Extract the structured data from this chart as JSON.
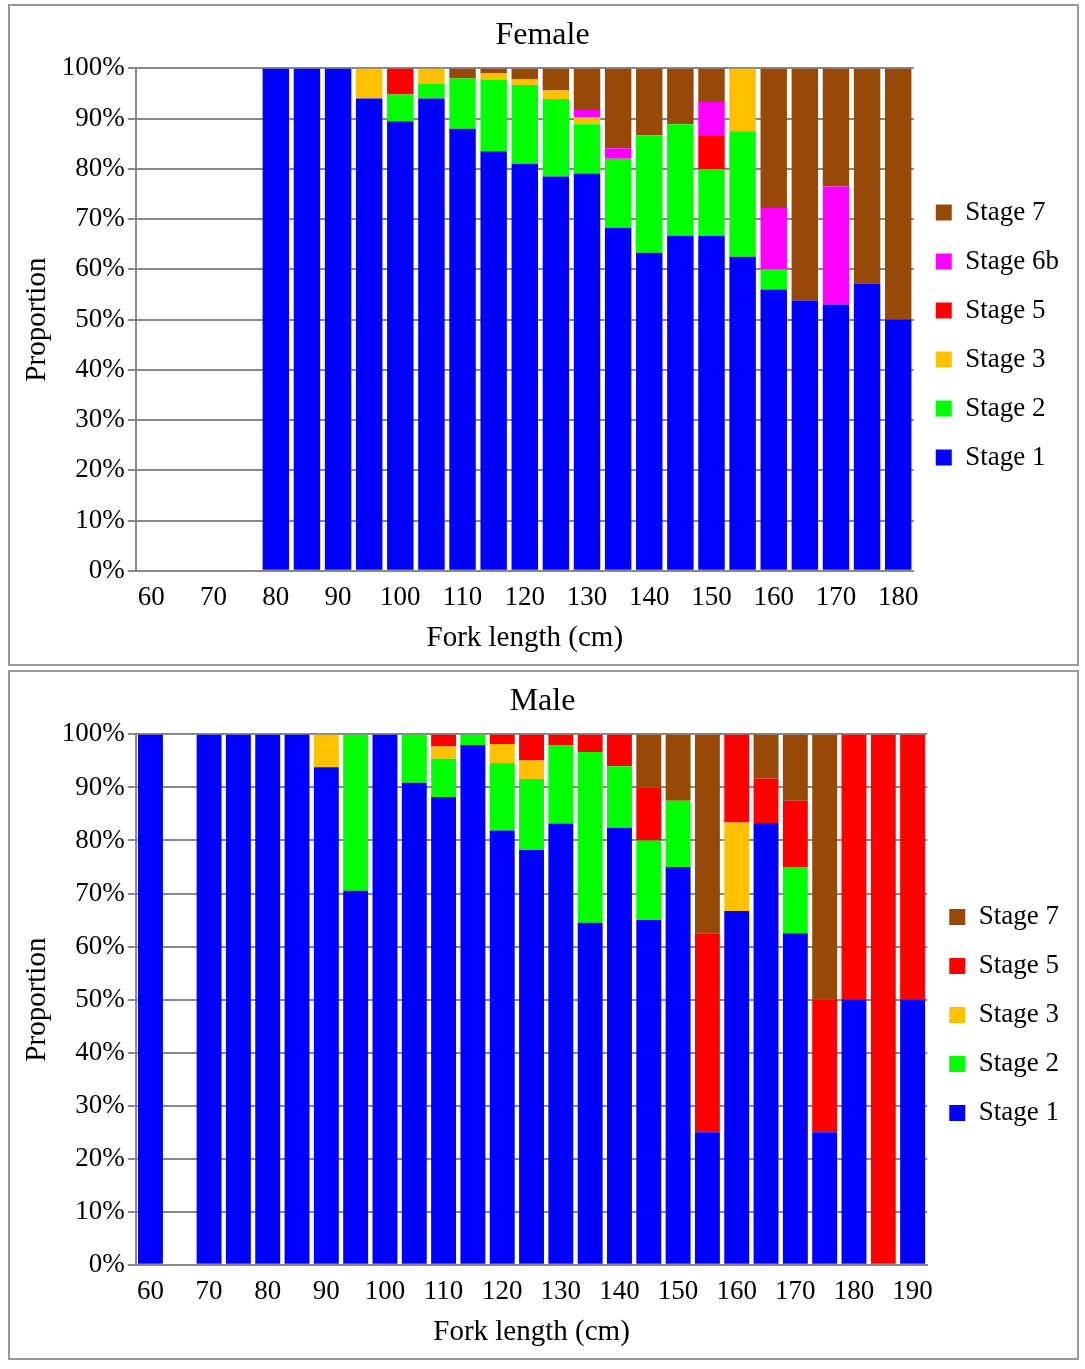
{
  "chart_data": [
    {
      "type": "bar",
      "title": "Female",
      "xlabel": "Fork length (cm)",
      "ylabel": "Proportion",
      "stacked": true,
      "legend": "right",
      "grid": "y",
      "categories": [
        "60",
        null,
        "70",
        null,
        "80",
        null,
        "90",
        null,
        "100",
        null,
        "110",
        null,
        "120",
        null,
        "130",
        null,
        "140",
        null,
        "150",
        null,
        "160",
        null,
        "170",
        null,
        "180"
      ],
      "ylim": [
        0,
        100
      ],
      "yticks": [
        {
          "value": 0,
          "label": "0%"
        },
        {
          "value": 10,
          "label": "10%"
        },
        {
          "value": 20,
          "label": "20%"
        },
        {
          "value": 30,
          "label": "30%"
        },
        {
          "value": 40,
          "label": "40%"
        },
        {
          "value": 50,
          "label": "50%"
        },
        {
          "value": 60,
          "label": "60%"
        },
        {
          "value": 70,
          "label": "70%"
        },
        {
          "value": 80,
          "label": "80%"
        },
        {
          "value": 90,
          "label": "90%"
        },
        {
          "value": 100,
          "label": "100%"
        }
      ],
      "series": [
        {
          "name": "Stage 1",
          "color": "#0000ff",
          "values": [
            null,
            null,
            null,
            null,
            100,
            100,
            100,
            94,
            89.5,
            94,
            88,
            83.5,
            81,
            78.5,
            79.1,
            68.3,
            63.3,
            66.7,
            66.7,
            62.5,
            56,
            53.8,
            53,
            57.2,
            50
          ]
        },
        {
          "name": "Stage 2",
          "color": "#00ff00",
          "values": [
            null,
            null,
            null,
            null,
            null,
            null,
            null,
            null,
            5.3,
            3,
            10,
            14.3,
            15.7,
            15.4,
            9.8,
            13.7,
            23.4,
            22.2,
            13.3,
            25,
            4,
            null,
            null,
            null,
            null
          ]
        },
        {
          "name": "Stage 3",
          "color": "#ffc000",
          "values": [
            null,
            null,
            null,
            null,
            null,
            null,
            null,
            6,
            null,
            3,
            null,
            1.2,
            1.1,
            1.7,
            1.4,
            null,
            null,
            null,
            null,
            12.5,
            null,
            null,
            null,
            null,
            null
          ]
        },
        {
          "name": "Stage 5",
          "color": "#ff0000",
          "values": [
            null,
            null,
            null,
            null,
            null,
            null,
            null,
            null,
            5.2,
            null,
            null,
            null,
            null,
            null,
            null,
            null,
            null,
            null,
            6.7,
            null,
            null,
            null,
            null,
            null,
            null
          ]
        },
        {
          "name": "Stage 6b",
          "color": "#ff00ff",
          "values": [
            null,
            null,
            null,
            null,
            null,
            null,
            null,
            null,
            null,
            null,
            null,
            null,
            null,
            null,
            1.4,
            2.1,
            null,
            null,
            6.6,
            null,
            12.2,
            null,
            23.5,
            null,
            null
          ]
        },
        {
          "name": "Stage 7",
          "color": "#984807",
          "values": [
            null,
            null,
            null,
            null,
            null,
            null,
            null,
            null,
            null,
            null,
            2,
            1,
            2.2,
            4.4,
            8.3,
            15.9,
            13.3,
            11.1,
            6.7,
            null,
            27.8,
            46.2,
            23.5,
            42.8,
            50
          ]
        }
      ]
    },
    {
      "type": "bar",
      "title": "Male",
      "xlabel": "Fork length (cm)",
      "ylabel": "Proportion",
      "stacked": true,
      "legend": "right",
      "grid": "y",
      "categories": [
        "60",
        null,
        "70",
        null,
        "80",
        null,
        "90",
        null,
        "100",
        null,
        "110",
        null,
        "120",
        null,
        "130",
        null,
        "140",
        null,
        "150",
        null,
        "160",
        null,
        "170",
        null,
        "180",
        null,
        "190"
      ],
      "ylim": [
        0,
        100
      ],
      "yticks": [
        {
          "value": 0,
          "label": "0%"
        },
        {
          "value": 10,
          "label": "10%"
        },
        {
          "value": 20,
          "label": "20%"
        },
        {
          "value": 30,
          "label": "30%"
        },
        {
          "value": 40,
          "label": "40%"
        },
        {
          "value": 50,
          "label": "50%"
        },
        {
          "value": 60,
          "label": "60%"
        },
        {
          "value": 70,
          "label": "70%"
        },
        {
          "value": 80,
          "label": "80%"
        },
        {
          "value": 90,
          "label": "90%"
        },
        {
          "value": 100,
          "label": "100%"
        }
      ],
      "series": [
        {
          "name": "Stage 1",
          "color": "#0000ff",
          "values": [
            100,
            null,
            100,
            100,
            100,
            100,
            93.8,
            70.5,
            100,
            90.9,
            88.2,
            98,
            81.9,
            78.2,
            83.2,
            64.5,
            82.4,
            65,
            75,
            25,
            66.7,
            83.3,
            62.5,
            25,
            50,
            null,
            50
          ]
        },
        {
          "name": "Stage 2",
          "color": "#00ff00",
          "values": [
            null,
            null,
            null,
            null,
            null,
            null,
            null,
            29.5,
            null,
            9.1,
            7.2,
            2,
            12.7,
            13.4,
            14.8,
            32.2,
            11.6,
            15,
            12.5,
            null,
            null,
            null,
            12.5,
            null,
            null,
            null,
            null
          ]
        },
        {
          "name": "Stage 3",
          "color": "#ffc000",
          "values": [
            null,
            null,
            null,
            null,
            null,
            null,
            6.2,
            null,
            null,
            null,
            2.3,
            null,
            3.6,
            3.5,
            null,
            null,
            null,
            null,
            null,
            null,
            16.7,
            null,
            null,
            null,
            null,
            null,
            null
          ]
        },
        {
          "name": "Stage 5",
          "color": "#ff0000",
          "values": [
            null,
            null,
            null,
            null,
            null,
            null,
            null,
            null,
            null,
            null,
            2.3,
            null,
            1.8,
            4.9,
            2,
            3.3,
            6,
            10,
            null,
            37.5,
            16.6,
            8.4,
            12.5,
            25,
            50,
            100,
            50
          ]
        },
        {
          "name": "Stage 7",
          "color": "#984807",
          "values": [
            null,
            null,
            null,
            null,
            null,
            null,
            null,
            null,
            null,
            null,
            null,
            null,
            null,
            null,
            null,
            null,
            null,
            10,
            12.5,
            37.5,
            null,
            8.3,
            12.5,
            50,
            null,
            null,
            null
          ]
        }
      ]
    }
  ]
}
